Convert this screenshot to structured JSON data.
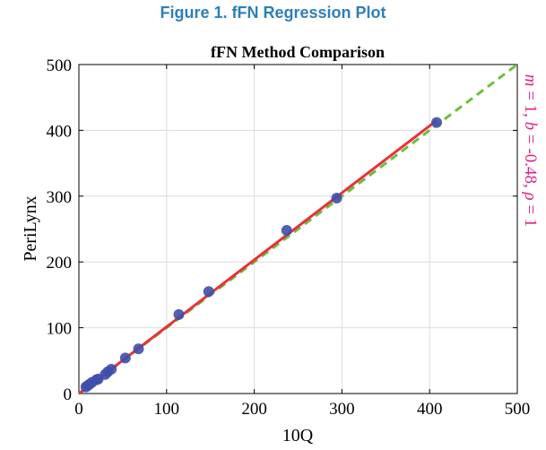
{
  "figure_caption": "Figure 1. fFN Regression Plot",
  "chart_data": {
    "type": "scatter",
    "title": "fFN Method Comparison",
    "xlabel": "10Q",
    "ylabel": "PeriLynx",
    "xlim": [
      0,
      500
    ],
    "ylim": [
      0,
      500
    ],
    "x_ticks": [
      "0",
      "100",
      "200",
      "300",
      "400",
      "500"
    ],
    "y_ticks": [
      "0",
      "100",
      "200",
      "300",
      "400",
      "500"
    ],
    "grid": true,
    "points": [
      {
        "x": 8,
        "y": 10
      },
      {
        "x": 10,
        "y": 12
      },
      {
        "x": 12,
        "y": 14
      },
      {
        "x": 15,
        "y": 17
      },
      {
        "x": 20,
        "y": 21
      },
      {
        "x": 22,
        "y": 22
      },
      {
        "x": 30,
        "y": 29
      },
      {
        "x": 33,
        "y": 33
      },
      {
        "x": 37,
        "y": 37
      },
      {
        "x": 53,
        "y": 54
      },
      {
        "x": 68,
        "y": 68
      },
      {
        "x": 114,
        "y": 120
      },
      {
        "x": 148,
        "y": 155
      },
      {
        "x": 237,
        "y": 248
      },
      {
        "x": 294,
        "y": 297
      },
      {
        "x": 408,
        "y": 412
      }
    ],
    "regression_line": {
      "x": [
        0,
        408
      ],
      "y": [
        -0.48,
        415
      ],
      "color": "#e8303a"
    },
    "identity_line": {
      "x": [
        0,
        500
      ],
      "y": [
        0,
        500
      ],
      "color": "#6cbf3a"
    },
    "point_color": "#3f4fa8",
    "annotation": {
      "m": "m",
      "m_val": " = 1, ",
      "b": "b",
      "b_val": " = -0.48, ",
      "rho": "ρ",
      "rho_val": " = 1",
      "color": "#e0218a"
    }
  }
}
